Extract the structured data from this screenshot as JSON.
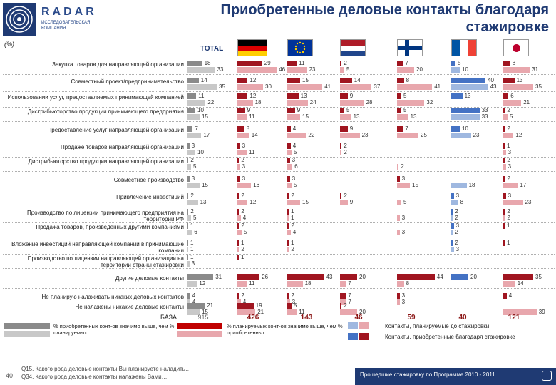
{
  "header": {
    "brand": "RADAR",
    "brand_sub": "ИССЛЕДОВАТЕЛЬСКАЯ КОМПАНИЯ",
    "title": "Приобретенные деловые контакты благодаря стажировке",
    "unit": "(%)"
  },
  "columns": [
    {
      "label": "TOTAL",
      "flag": "none"
    },
    {
      "label": "",
      "flag": "germany"
    },
    {
      "label": "",
      "flag": "eu"
    },
    {
      "label": "",
      "flag": "netherlands"
    },
    {
      "label": "",
      "flag": "finland"
    },
    {
      "label": "",
      "flag": "france"
    },
    {
      "label": "",
      "flag": "japan"
    }
  ],
  "colors": {
    "acquired_total": "#8a8a8a",
    "planned_total": "#c8c8c8",
    "acquired_country_red": "#a01520",
    "planned_country_red": "#e8a7ad",
    "acquired_country_blue": "#4472c4",
    "planned_country_blue": "#9fb8e0",
    "planned_highlight_blue": "#a9a9a9",
    "acquired_highlight_red": "#c00000"
  },
  "chart_data": {
    "type": "bar",
    "series_names": [
      "Контакты, приобретенные благодаря стажировке",
      "Контакты, планируемые до стажировки"
    ],
    "categories": [
      "Закупка товаров для направляющей организации",
      "Совместный проект/предпринимательство",
      "Использовании услуг, предоставляемых принимающей компанией",
      "Дистрибьюторство продукции принимающего предприятия",
      "Предоставление услуг направляющей организации",
      "Продаже товаров направляющей организации",
      "Дистрибьюторство продукции направляющей организации",
      "Совместное производство",
      "Привлечение инвестиций",
      "Производство по лицензии принимающего предприятия на территории РФ",
      "Продажа товаров, произведенных другими компаниями",
      "Вложение инвестиций направляющей компании в принимающие компании",
      "Производство по лицензии направляющей организации на территории страны стажировки",
      "Другие деловые контакты",
      "Не планирую налаживать никаких деловых контактов",
      "Не налажены никакие деловые контакты"
    ],
    "groups": [
      {
        "name": "TOTAL",
        "acquired": [
          18,
          14,
          11,
          10,
          7,
          3,
          2,
          3,
          2,
          2,
          1,
          1,
          1,
          31,
          4,
          21
        ],
        "planned": [
          33,
          35,
          22,
          15,
          17,
          10,
          5,
          15,
          13,
          5,
          6,
          1,
          3,
          12,
          4,
          15
        ]
      },
      {
        "name": "germany",
        "acquired": [
          29,
          12,
          12,
          9,
          8,
          3,
          2,
          3,
          2,
          2,
          2,
          1,
          1,
          26,
          2,
          19
        ],
        "planned": [
          46,
          30,
          18,
          11,
          14,
          11,
          3,
          16,
          12,
          4,
          5,
          2,
          null,
          11,
          4,
          21
        ]
      },
      {
        "name": "eu",
        "acquired": [
          11,
          15,
          13,
          9,
          4,
          4,
          3,
          3,
          2,
          1,
          2,
          1,
          null,
          43,
          2,
          5
        ],
        "planned": [
          23,
          41,
          24,
          15,
          22,
          5,
          6,
          5,
          15,
          1,
          4,
          2,
          null,
          18,
          3,
          11
        ]
      },
      {
        "name": "netherlands",
        "acquired": [
          2,
          14,
          9,
          5,
          9,
          2,
          null,
          null,
          2,
          null,
          null,
          null,
          null,
          20,
          7,
          2
        ],
        "planned": [
          5,
          37,
          28,
          13,
          23,
          2,
          null,
          null,
          9,
          null,
          null,
          null,
          null,
          7,
          7,
          20
        ]
      },
      {
        "name": "finland",
        "acquired": [
          7,
          8,
          5,
          5,
          7,
          null,
          null,
          3,
          null,
          null,
          null,
          null,
          null,
          44,
          3,
          null
        ],
        "planned": [
          20,
          41,
          32,
          13,
          25,
          null,
          2,
          15,
          5,
          3,
          3,
          null,
          null,
          8,
          3,
          null
        ]
      },
      {
        "name": "france",
        "acquired": [
          5,
          40,
          13,
          33,
          10,
          null,
          null,
          null,
          3,
          2,
          3,
          2,
          null,
          20,
          null,
          null
        ],
        "planned": [
          10,
          43,
          null,
          33,
          23,
          null,
          null,
          18,
          8,
          2,
          2,
          3,
          null,
          null,
          null,
          null
        ]
      },
      {
        "name": "japan",
        "acquired": [
          8,
          13,
          6,
          2,
          2,
          1,
          2,
          2,
          3,
          2,
          1,
          1,
          null,
          35,
          4,
          null
        ],
        "planned": [
          31,
          35,
          21,
          5,
          12,
          3,
          3,
          17,
          23,
          2,
          null,
          null,
          null,
          14,
          null,
          39
        ]
      }
    ],
    "base": {
      "label": "БАЗА",
      "values": [
        915,
        426,
        143,
        46,
        59,
        40,
        121
      ]
    }
  },
  "legend": {
    "left_label": "% приобретенных конт-ов значимо выше, чем % планируемых",
    "mid_label": "% планируемых конт-ов значимо выше, чем % приобретенных",
    "planned_label": "Контакты, планируемые до стажировки",
    "acquired_label": "Контакты, приобретенные благодаря стажировке"
  },
  "footer": {
    "page": "40",
    "q1": "Q15. Какого рода деловые контакты Вы планируете наладить…",
    "q2": "Q34. Какого рода деловые контакты налажены Вами…",
    "program": "Прошедшие стажировку по Программе 2010 - 2011"
  }
}
